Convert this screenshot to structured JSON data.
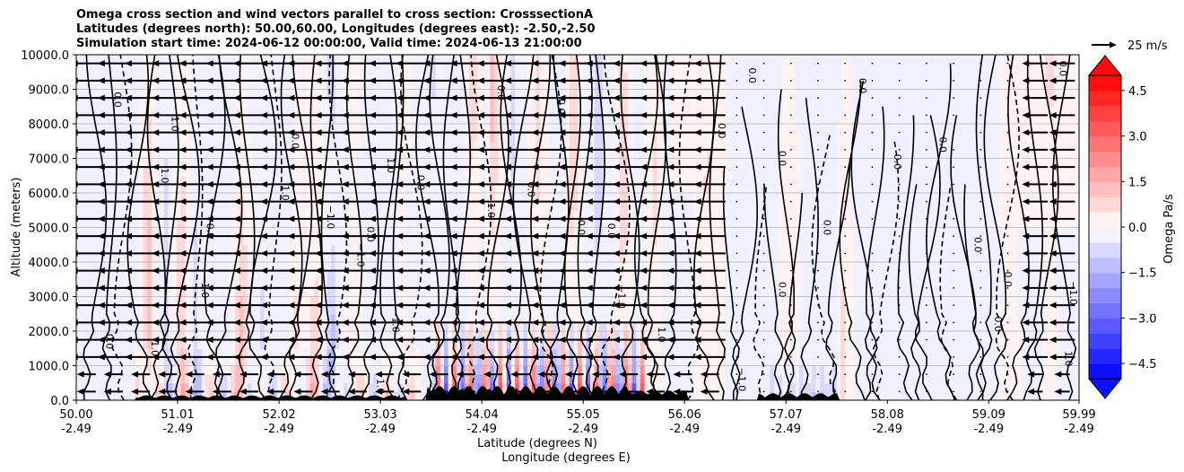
{
  "title": {
    "line1": "Omega cross section and wind vectors parallel to cross section: CrosssectionA",
    "line2": "Latitudes (degrees north): 50.00,60.00, Longitudes (degrees east): -2.50,-2.50",
    "line3": "Simulation start time: 2024-06-12 00:00:00, Valid time: 2024-06-13 21:00:00"
  },
  "chart_data": {
    "type": "heatmap",
    "description_type": "vertical cross section contour + quiver",
    "xlabel_line1": "Latitude (degrees N)",
    "xlabel_line2": "Longitude (degrees E)",
    "ylabel": "Altitude (meters)",
    "ylim": [
      0,
      10000
    ],
    "xlim": [
      50.0,
      59.99
    ],
    "y_ticks": [
      "0.0",
      "1000.0",
      "2000.0",
      "3000.0",
      "4000.0",
      "5000.0",
      "6000.0",
      "7000.0",
      "8000.0",
      "9000.0",
      "10000.0"
    ],
    "y_tick_values": [
      0,
      1000,
      2000,
      3000,
      4000,
      5000,
      6000,
      7000,
      8000,
      9000,
      10000
    ],
    "x_ticks": [
      {
        "lat": "50.00",
        "lon": "-2.49",
        "value": 50.0
      },
      {
        "lat": "51.01",
        "lon": "-2.49",
        "value": 51.01
      },
      {
        "lat": "52.02",
        "lon": "-2.49",
        "value": 52.02
      },
      {
        "lat": "53.03",
        "lon": "-2.49",
        "value": 53.03
      },
      {
        "lat": "54.04",
        "lon": "-2.49",
        "value": 54.04
      },
      {
        "lat": "55.05",
        "lon": "-2.49",
        "value": 55.05
      },
      {
        "lat": "56.06",
        "lon": "-2.49",
        "value": 56.06
      },
      {
        "lat": "57.07",
        "lon": "-2.49",
        "value": 57.07
      },
      {
        "lat": "58.08",
        "lon": "-2.49",
        "value": 58.08
      },
      {
        "lat": "59.09",
        "lon": "-2.49",
        "value": 59.09
      },
      {
        "lat": "59.99",
        "lon": "-2.49",
        "value": 59.99
      }
    ],
    "grid": true,
    "colorbar": {
      "label": "Omega Pa/s",
      "min": -5.0,
      "max": 5.0,
      "step": 0.5,
      "tick_labels": [
        "4.5",
        "3.0",
        "1.5",
        "0.0",
        "−1.5",
        "−3.0",
        "−4.5"
      ],
      "tick_values": [
        4.5,
        3.0,
        1.5,
        0.0,
        -1.5,
        -3.0,
        -4.5
      ],
      "extend": "both",
      "cmap": "bwr"
    },
    "quiver_key": {
      "label": "25 m/s",
      "speed": 25
    },
    "wind_field_summary": {
      "direction": "southward (leftward along section)",
      "strong_region_lat_range": [
        50.0,
        56.5
      ],
      "strong_speed_ms": 22,
      "weak_region_lat_range": [
        56.5,
        59.3
      ],
      "weak_speed_ms": 1,
      "north_region_lat_range": [
        59.3,
        59.99
      ],
      "north_speed_ms": 18
    },
    "contour_levels": [
      -1.0,
      0.0,
      1.0
    ],
    "contour_labels": [
      {
        "text": "0.0",
        "lat": 50.38,
        "alt": 8700
      },
      {
        "text": "1.0",
        "lat": 50.95,
        "alt": 8000
      },
      {
        "text": "1.0",
        "lat": 50.85,
        "alt": 6500
      },
      {
        "text": "0.0",
        "lat": 51.3,
        "alt": 4900
      },
      {
        "text": "−1.0",
        "lat": 51.25,
        "alt": 3300
      },
      {
        "text": "0.0",
        "lat": 50.3,
        "alt": 1700
      },
      {
        "text": "1.0",
        "lat": 50.75,
        "alt": 1500
      },
      {
        "text": "0.0",
        "lat": 52.15,
        "alt": 7500
      },
      {
        "text": "1.0",
        "lat": 52.05,
        "alt": 6000
      },
      {
        "text": "−1.0",
        "lat": 52.5,
        "alt": 5300
      },
      {
        "text": "0.0",
        "lat": 52.9,
        "alt": 4800
      },
      {
        "text": "−1.0",
        "lat": 52.8,
        "alt": 4200
      },
      {
        "text": "1.0",
        "lat": 53.1,
        "alt": 6800
      },
      {
        "text": "0.0",
        "lat": 53.4,
        "alt": 6300
      },
      {
        "text": "−1.0",
        "lat": 53.15,
        "alt": 2300
      },
      {
        "text": "1.0",
        "lat": 53.0,
        "alt": 400
      },
      {
        "text": "0.0",
        "lat": 54.2,
        "alt": 8900
      },
      {
        "text": "0.0",
        "lat": 54.8,
        "alt": 8500
      },
      {
        "text": "0.0",
        "lat": 54.5,
        "alt": 6100
      },
      {
        "text": "1.0",
        "lat": 54.1,
        "alt": 5500
      },
      {
        "text": "0.0",
        "lat": 55.0,
        "alt": 5000
      },
      {
        "text": "0.0",
        "lat": 55.3,
        "alt": 4900
      },
      {
        "text": "−1.0",
        "lat": 55.4,
        "alt": 3000
      },
      {
        "text": "1.0",
        "lat": 55.8,
        "alt": 1900
      },
      {
        "text": "0.0",
        "lat": 56.7,
        "alt": 9400
      },
      {
        "text": "0.0",
        "lat": 56.4,
        "alt": 7800
      },
      {
        "text": "0.0",
        "lat": 57.0,
        "alt": 7000
      },
      {
        "text": "0.0",
        "lat": 57.45,
        "alt": 5000
      },
      {
        "text": "0.0",
        "lat": 57.0,
        "alt": 3200
      },
      {
        "text": "−1.0",
        "lat": 56.6,
        "alt": 600
      },
      {
        "text": "0.0",
        "lat": 57.8,
        "alt": 9100
      },
      {
        "text": "0.0",
        "lat": 58.15,
        "alt": 6900
      },
      {
        "text": "0.0",
        "lat": 58.6,
        "alt": 7400
      },
      {
        "text": "0.0",
        "lat": 58.95,
        "alt": 4500
      },
      {
        "text": "0.0",
        "lat": 59.15,
        "alt": 2200
      },
      {
        "text": "0.0",
        "lat": 59.25,
        "alt": 3500
      },
      {
        "text": "1.0",
        "lat": 59.85,
        "alt": 1200
      },
      {
        "text": "−1.0",
        "lat": 59.9,
        "alt": 3100
      },
      {
        "text": "0.0",
        "lat": 59.8,
        "alt": 9600
      }
    ]
  },
  "colors": {
    "positive_max": "#ff0000",
    "negative_max": "#0000ff",
    "neutral": "#ffffff",
    "terrain": "#000000",
    "grid": "#b0b0b0"
  }
}
